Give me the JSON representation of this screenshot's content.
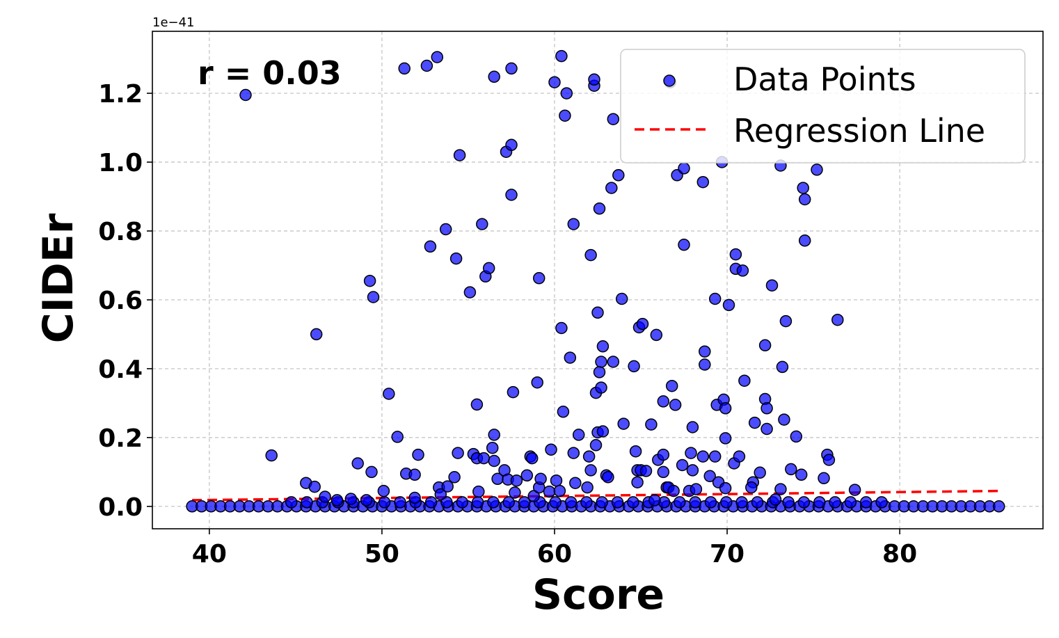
{
  "chart_data": {
    "type": "scatter",
    "xlabel": "Score",
    "ylabel": "CIDEr",
    "y_offset_label": "1e−41",
    "annotation": "r = 0.03",
    "xlim": [
      36.7,
      88.3
    ],
    "ylim": [
      -0.065,
      1.38
    ],
    "xticks": [
      40,
      50,
      60,
      70,
      80
    ],
    "yticks": [
      0.0,
      0.2,
      0.4,
      0.6,
      0.8,
      1.0,
      1.2
    ],
    "ytick_labels": [
      "0.0",
      "0.2",
      "0.4",
      "0.6",
      "0.8",
      "1.0",
      "1.2"
    ],
    "grid": true,
    "legend_position": "upper right",
    "legend": [
      {
        "label": "Data Points",
        "marker": "circle",
        "color": "#0000ff"
      },
      {
        "label": "Regression Line",
        "marker": "dashed-line",
        "color": "#ff0000"
      }
    ],
    "colors": {
      "points": "#0000ff",
      "point_edge": "#000000",
      "regression": "#ff0000"
    },
    "regression": {
      "x": [
        39.0,
        86.0
      ],
      "y": [
        0.018,
        0.045
      ]
    },
    "series": [
      {
        "name": "Data Points",
        "points": [
          [
            42.1,
            1.195
          ],
          [
            43.6,
            0.148
          ],
          [
            45.6,
            0.068
          ],
          [
            46.1,
            0.057
          ],
          [
            46.2,
            0.5
          ],
          [
            46.7,
            0.028
          ],
          [
            47.4,
            0.018
          ],
          [
            48.2,
            0.022
          ],
          [
            48.6,
            0.125
          ],
          [
            49.1,
            0.018
          ],
          [
            49.3,
            0.655
          ],
          [
            49.5,
            0.608
          ],
          [
            49.4,
            0.1
          ],
          [
            50.1,
            0.045
          ],
          [
            50.4,
            0.327
          ],
          [
            50.9,
            0.202
          ],
          [
            51.3,
            1.272
          ],
          [
            51.4,
            0.095
          ],
          [
            51.9,
            0.092
          ],
          [
            51.9,
            0.025
          ],
          [
            52.1,
            0.15
          ],
          [
            52.6,
            1.28
          ],
          [
            52.8,
            0.755
          ],
          [
            53.2,
            1.305
          ],
          [
            53.3,
            0.055
          ],
          [
            53.4,
            0.035
          ],
          [
            53.7,
            0.805
          ],
          [
            53.8,
            0.058
          ],
          [
            54.2,
            0.085
          ],
          [
            54.3,
            0.72
          ],
          [
            54.4,
            0.155
          ],
          [
            54.5,
            1.02
          ],
          [
            55.1,
            0.622
          ],
          [
            55.3,
            0.152
          ],
          [
            55.5,
            0.14
          ],
          [
            55.5,
            0.296
          ],
          [
            55.6,
            0.043
          ],
          [
            55.8,
            0.82
          ],
          [
            55.9,
            0.14
          ],
          [
            56.0,
            0.668
          ],
          [
            56.2,
            0.692
          ],
          [
            56.4,
            0.17
          ],
          [
            56.5,
            0.132
          ],
          [
            56.5,
            1.248
          ],
          [
            56.5,
            0.208
          ],
          [
            56.7,
            0.08
          ],
          [
            57.1,
            0.105
          ],
          [
            57.2,
            1.03
          ],
          [
            57.3,
            0.078
          ],
          [
            57.5,
            0.905
          ],
          [
            57.5,
            1.05
          ],
          [
            57.5,
            1.272
          ],
          [
            57.6,
            0.332
          ],
          [
            57.7,
            0.04
          ],
          [
            57.8,
            0.075
          ],
          [
            58.4,
            0.09
          ],
          [
            58.6,
            0.145
          ],
          [
            58.7,
            0.14
          ],
          [
            58.8,
            0.03
          ],
          [
            59.0,
            0.36
          ],
          [
            59.1,
            0.055
          ],
          [
            59.1,
            0.663
          ],
          [
            59.2,
            0.08
          ],
          [
            59.7,
            0.043
          ],
          [
            59.8,
            0.165
          ],
          [
            60.0,
            1.232
          ],
          [
            60.1,
            0.075
          ],
          [
            60.3,
            0.045
          ],
          [
            60.4,
            1.308
          ],
          [
            60.4,
            0.518
          ],
          [
            60.5,
            0.275
          ],
          [
            60.6,
            1.135
          ],
          [
            60.7,
            1.2
          ],
          [
            60.9,
            0.432
          ],
          [
            61.1,
            0.155
          ],
          [
            61.1,
            0.82
          ],
          [
            61.2,
            0.068
          ],
          [
            61.4,
            0.208
          ],
          [
            61.9,
            0.055
          ],
          [
            62.0,
            0.145
          ],
          [
            62.1,
            0.73
          ],
          [
            62.1,
            0.105
          ],
          [
            62.3,
            1.222
          ],
          [
            62.3,
            1.24
          ],
          [
            62.4,
            0.178
          ],
          [
            62.4,
            0.33
          ],
          [
            62.5,
            0.563
          ],
          [
            62.5,
            0.215
          ],
          [
            62.6,
            0.865
          ],
          [
            62.6,
            0.39
          ],
          [
            62.7,
            0.42
          ],
          [
            62.7,
            0.345
          ],
          [
            62.8,
            0.218
          ],
          [
            62.8,
            0.465
          ],
          [
            63.0,
            0.09
          ],
          [
            63.1,
            0.085
          ],
          [
            63.3,
            0.925
          ],
          [
            63.4,
            1.125
          ],
          [
            63.4,
            0.42
          ],
          [
            63.7,
            0.962
          ],
          [
            63.9,
            0.603
          ],
          [
            64.0,
            0.24
          ],
          [
            64.6,
            0.407
          ],
          [
            64.7,
            0.16
          ],
          [
            64.8,
            0.07
          ],
          [
            64.8,
            0.105
          ],
          [
            64.9,
            0.52
          ],
          [
            65.0,
            0.105
          ],
          [
            65.1,
            0.53
          ],
          [
            65.3,
            0.103
          ],
          [
            65.6,
            0.238
          ],
          [
            65.8,
            0.018
          ],
          [
            65.9,
            0.498
          ],
          [
            66.0,
            0.135
          ],
          [
            66.3,
            0.15
          ],
          [
            66.3,
            0.305
          ],
          [
            66.3,
            0.1
          ],
          [
            66.5,
            0.055
          ],
          [
            66.6,
            0.055
          ],
          [
            66.7,
            1.232
          ],
          [
            66.8,
            0.35
          ],
          [
            66.9,
            0.045
          ],
          [
            67.0,
            0.295
          ],
          [
            67.1,
            0.962
          ],
          [
            67.4,
            0.12
          ],
          [
            67.5,
            0.76
          ],
          [
            67.5,
            0.982
          ],
          [
            67.8,
            0.045
          ],
          [
            67.9,
            0.155
          ],
          [
            68.0,
            0.23
          ],
          [
            68.0,
            0.105
          ],
          [
            68.2,
            0.05
          ],
          [
            68.6,
            0.942
          ],
          [
            68.6,
            0.145
          ],
          [
            68.7,
            0.45
          ],
          [
            68.7,
            0.412
          ],
          [
            69.0,
            0.088
          ],
          [
            69.3,
            0.145
          ],
          [
            69.3,
            0.603
          ],
          [
            69.4,
            0.295
          ],
          [
            69.5,
            0.07
          ],
          [
            69.7,
            1.0
          ],
          [
            69.8,
            0.31
          ],
          [
            69.9,
            0.285
          ],
          [
            69.9,
            0.053
          ],
          [
            69.9,
            0.198
          ],
          [
            70.1,
            0.585
          ],
          [
            70.4,
            0.125
          ],
          [
            70.5,
            0.732
          ],
          [
            70.5,
            0.69
          ],
          [
            70.7,
            0.145
          ],
          [
            70.9,
            0.685
          ],
          [
            71.0,
            0.365
          ],
          [
            71.5,
            0.07
          ],
          [
            71.4,
            0.055
          ],
          [
            71.6,
            0.243
          ],
          [
            71.9,
            0.098
          ],
          [
            72.2,
            0.468
          ],
          [
            72.2,
            0.312
          ],
          [
            72.3,
            0.285
          ],
          [
            72.3,
            0.225
          ],
          [
            72.6,
            0.642
          ],
          [
            72.8,
            0.02
          ],
          [
            73.1,
            0.05
          ],
          [
            73.1,
            0.99
          ],
          [
            73.2,
            0.405
          ],
          [
            73.3,
            0.252
          ],
          [
            73.4,
            0.538
          ],
          [
            73.7,
            0.108
          ],
          [
            74.0,
            0.203
          ],
          [
            74.3,
            0.092
          ],
          [
            74.4,
            0.925
          ],
          [
            74.5,
            0.892
          ],
          [
            74.5,
            0.772
          ],
          [
            75.2,
            0.978
          ],
          [
            75.6,
            0.082
          ],
          [
            75.8,
            0.15
          ],
          [
            75.9,
            0.135
          ],
          [
            76.4,
            0.542
          ],
          [
            77.4,
            0.048
          ]
        ]
      }
    ]
  }
}
